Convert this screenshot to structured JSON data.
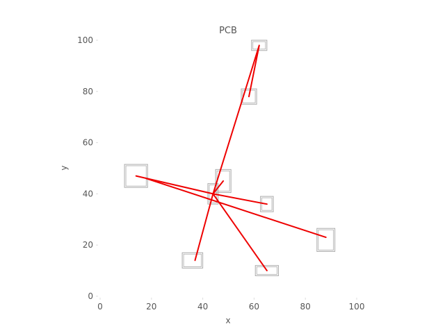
{
  "chart_data": {
    "type": "line",
    "title": "PCB",
    "xlabel": "x",
    "ylabel": "y",
    "xlim": [
      0,
      100
    ],
    "ylim": [
      0,
      100
    ],
    "xticks": [
      "0",
      "20",
      "40",
      "60",
      "80",
      "100"
    ],
    "yticks": [
      "0",
      "20",
      "40",
      "60",
      "80",
      "100"
    ],
    "grid": false,
    "components": [
      {
        "x": 62,
        "y": 98,
        "w": 6,
        "h": 4
      },
      {
        "x": 58,
        "y": 78,
        "w": 6,
        "h": 6
      },
      {
        "x": 14,
        "y": 47,
        "w": 9,
        "h": 9
      },
      {
        "x": 48,
        "y": 45,
        "w": 6,
        "h": 9
      },
      {
        "x": 44,
        "y": 40,
        "w": 4,
        "h": 8
      },
      {
        "x": 65,
        "y": 36,
        "w": 5,
        "h": 6
      },
      {
        "x": 88,
        "y": 22,
        "w": 7,
        "h": 9
      },
      {
        "x": 36,
        "y": 14,
        "w": 8,
        "h": 6
      },
      {
        "x": 65,
        "y": 10,
        "w": 9,
        "h": 4
      }
    ],
    "wires": [
      {
        "x": [
          44,
          62,
          58
        ],
        "y": [
          40,
          98,
          78
        ]
      },
      {
        "x": [
          14,
          44,
          65
        ],
        "y": [
          47,
          40,
          36
        ]
      },
      {
        "x": [
          18,
          88
        ],
        "y": [
          46,
          23
        ]
      },
      {
        "x": [
          37,
          44,
          48
        ],
        "y": [
          14,
          40,
          45
        ]
      },
      {
        "x": [
          44,
          65
        ],
        "y": [
          40,
          10
        ]
      }
    ],
    "colors": {
      "wire": "#ee0000",
      "component": "#aaaaaa",
      "tick": "#dddddd"
    }
  }
}
